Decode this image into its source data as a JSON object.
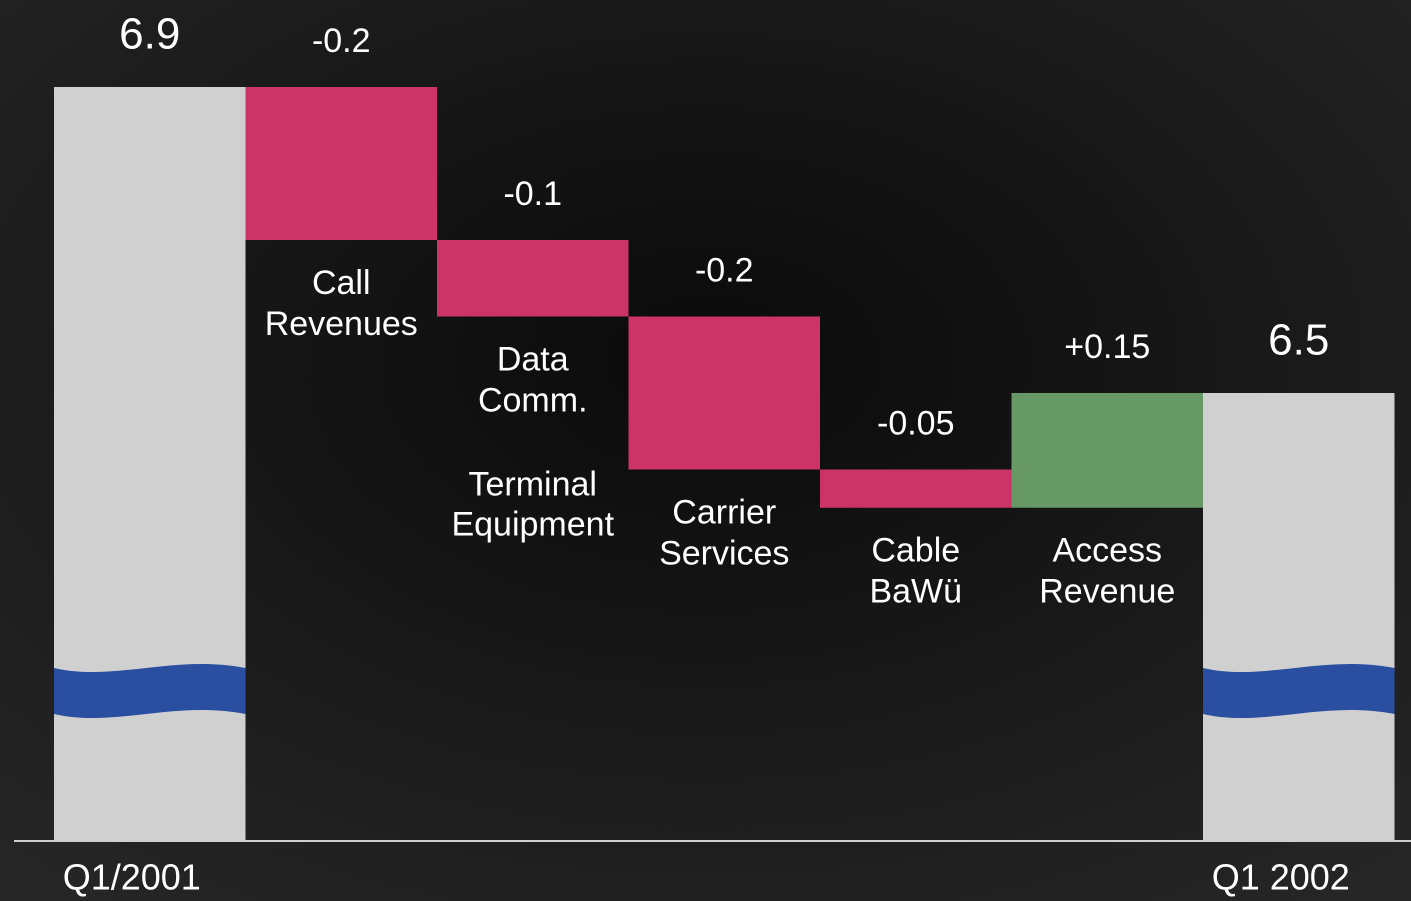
{
  "chart_data": {
    "type": "waterfall",
    "categories": [
      [
        "Q1/2001"
      ],
      [
        "Call",
        "Revenues"
      ],
      [
        "Data",
        "Comm."
      ],
      [
        "Carrier",
        "Services"
      ],
      [
        "Cable",
        "BaWü"
      ],
      [
        "Access",
        "Revenue"
      ],
      [
        "Q1 2002"
      ]
    ],
    "values": [
      6.9,
      -0.2,
      -0.1,
      -0.2,
      -0.05,
      0.15,
      6.5
    ],
    "value_labels": [
      "6.9",
      "-0.2",
      "-0.1",
      "-0.2",
      "-0.05",
      "+0.15",
      "6.5"
    ],
    "kinds": [
      "total",
      "delta",
      "delta",
      "delta",
      "delta",
      "delta",
      "total"
    ],
    "annotations": [
      [
        "Terminal",
        "Equipment"
      ]
    ],
    "colors": {
      "total": "#d0d0d0",
      "negative": "#cc3366",
      "positive": "#669966",
      "break": "#2a4fa0"
    }
  }
}
